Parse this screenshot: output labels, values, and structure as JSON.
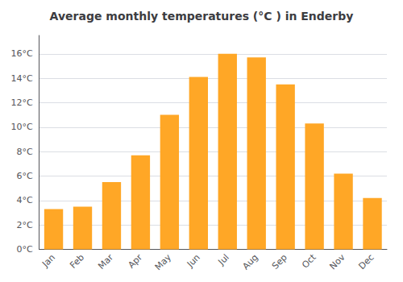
{
  "chart_data": {
    "type": "bar",
    "title": "Average monthly temperatures (°C ) in Enderby",
    "categories": [
      "Jan",
      "Feb",
      "Mar",
      "Apr",
      "May",
      "Jun",
      "Jul",
      "Aug",
      "Sep",
      "Oct",
      "Nov",
      "Dec"
    ],
    "values": [
      3.3,
      3.5,
      5.5,
      7.7,
      11.0,
      14.1,
      16.0,
      15.7,
      13.5,
      10.3,
      6.2,
      4.2
    ],
    "color": "#FFA726",
    "ylim": [
      0,
      17.5
    ],
    "yticks": [
      {
        "value": 0,
        "label": "0°C"
      },
      {
        "value": 2,
        "label": "2°C"
      },
      {
        "value": 4,
        "label": "4°C"
      },
      {
        "value": 6,
        "label": "6°C"
      },
      {
        "value": 8,
        "label": "8°C"
      },
      {
        "value": 10,
        "label": "10°C"
      },
      {
        "value": 12,
        "label": "12°C"
      },
      {
        "value": 14,
        "label": "14°C"
      },
      {
        "value": 16,
        "label": "16°C"
      }
    ],
    "grid": true
  }
}
